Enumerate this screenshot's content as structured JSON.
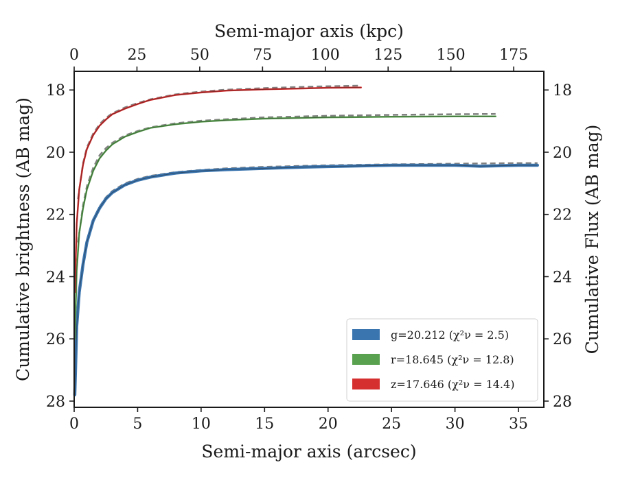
{
  "chart_data": {
    "type": "line",
    "xlabel": "Semi-major axis (arcsec)",
    "ylabel": "Cumulative brightness (AB mag)",
    "top_xlabel": "Semi-major axis (kpc)",
    "right_ylabel": "Cumulative Flux (AB mag)",
    "xlim": [
      0,
      37
    ],
    "ylim": [
      28.2,
      17.4
    ],
    "y_inverted": true,
    "top_xlim": [
      0,
      187
    ],
    "x_ticks": [
      0,
      5,
      10,
      15,
      20,
      25,
      30,
      35
    ],
    "y_ticks": [
      18,
      20,
      22,
      24,
      26,
      28
    ],
    "top_x_ticks": [
      0,
      25,
      50,
      75,
      100,
      125,
      150,
      175
    ],
    "grid": false,
    "legend_position": "lower-right",
    "series": [
      {
        "name": "g=20.212 ($\\chi^2_\\nu = 2.5$)",
        "legend_label": "g=20.212 (χ²ν = 2.5)",
        "color": "#3b75af",
        "line_width": "thick",
        "x": [
          0.05,
          0.2,
          0.4,
          0.7,
          1.0,
          1.5,
          2.0,
          2.5,
          3.0,
          4.0,
          5.0,
          6.0,
          8.0,
          10.0,
          12.0,
          15.0,
          18.0,
          20.0,
          25.0,
          30.0,
          32.0,
          35.0,
          36.5
        ],
        "y": [
          27.8,
          25.6,
          24.5,
          23.6,
          22.9,
          22.2,
          21.8,
          21.5,
          21.3,
          21.05,
          20.9,
          20.8,
          20.67,
          20.6,
          20.56,
          20.52,
          20.48,
          20.46,
          20.42,
          20.42,
          20.45,
          20.42,
          20.42
        ]
      },
      {
        "name": "r=18.645 ($\\chi^2_\\nu = 12.8$)",
        "legend_label": "r=18.645 (χ²ν = 12.8)",
        "color": "#59a14f",
        "line_width": "medium",
        "x": [
          0.05,
          0.2,
          0.4,
          0.7,
          1.0,
          1.5,
          2.0,
          2.5,
          3.0,
          4.0,
          5.0,
          6.0,
          8.0,
          10.0,
          12.0,
          15.0,
          20.0,
          25.0,
          30.0,
          33.2
        ],
        "y": [
          26.0,
          23.8,
          22.6,
          21.8,
          21.2,
          20.6,
          20.2,
          19.95,
          19.75,
          19.5,
          19.35,
          19.22,
          19.1,
          19.02,
          18.97,
          18.92,
          18.88,
          18.86,
          18.85,
          18.85
        ]
      },
      {
        "name": "z=17.646 ($\\chi^2_\\nu = 14.4$)",
        "legend_label": "z=17.646 (χ²ν = 14.4)",
        "color": "#d62f2f",
        "line_width": "medium",
        "x": [
          0.05,
          0.2,
          0.4,
          0.7,
          1.0,
          1.5,
          2.0,
          2.5,
          3.0,
          4.0,
          5.0,
          6.0,
          8.0,
          10.0,
          12.0,
          15.0,
          18.0,
          20.0,
          22.6
        ],
        "y": [
          24.5,
          22.3,
          21.2,
          20.4,
          19.9,
          19.45,
          19.15,
          18.95,
          18.78,
          18.6,
          18.45,
          18.32,
          18.16,
          18.08,
          18.02,
          17.98,
          17.95,
          17.93,
          17.92
        ]
      }
    ],
    "model_fits": [
      {
        "style": "dashed",
        "color": "#808080",
        "x": [
          0.3,
          0.7,
          1.0,
          1.5,
          2.0,
          2.5,
          3.0,
          4.0,
          5.0,
          6.0,
          8.0,
          10.0,
          12.0,
          15.0,
          18.0,
          20.0,
          25.0,
          30.0,
          35.0,
          36.5
        ],
        "y": [
          24.8,
          23.5,
          22.85,
          22.15,
          21.75,
          21.45,
          21.25,
          21.0,
          20.86,
          20.76,
          20.64,
          20.57,
          20.52,
          20.47,
          20.44,
          20.42,
          20.39,
          20.37,
          20.35,
          20.35
        ]
      },
      {
        "style": "dashed",
        "color": "#808080",
        "x": [
          0.3,
          0.7,
          1.0,
          1.5,
          2.0,
          2.5,
          3.0,
          4.0,
          5.0,
          6.0,
          8.0,
          10.0,
          12.0,
          15.0,
          20.0,
          25.0,
          30.0,
          33.2
        ],
        "y": [
          22.9,
          21.7,
          21.1,
          20.5,
          20.1,
          19.87,
          19.7,
          19.46,
          19.32,
          19.2,
          19.07,
          18.99,
          18.94,
          18.88,
          18.83,
          18.8,
          18.78,
          18.77
        ]
      },
      {
        "style": "dashed",
        "color": "#808080",
        "x": [
          0.3,
          0.7,
          1.0,
          1.5,
          2.0,
          2.5,
          3.0,
          4.0,
          5.0,
          6.0,
          8.0,
          10.0,
          12.0,
          15.0,
          18.0,
          20.0,
          22.6
        ],
        "y": [
          21.5,
          20.35,
          19.85,
          19.4,
          19.1,
          18.9,
          18.75,
          18.56,
          18.42,
          18.3,
          18.14,
          18.05,
          17.99,
          17.94,
          17.9,
          17.88,
          17.86
        ]
      }
    ]
  }
}
